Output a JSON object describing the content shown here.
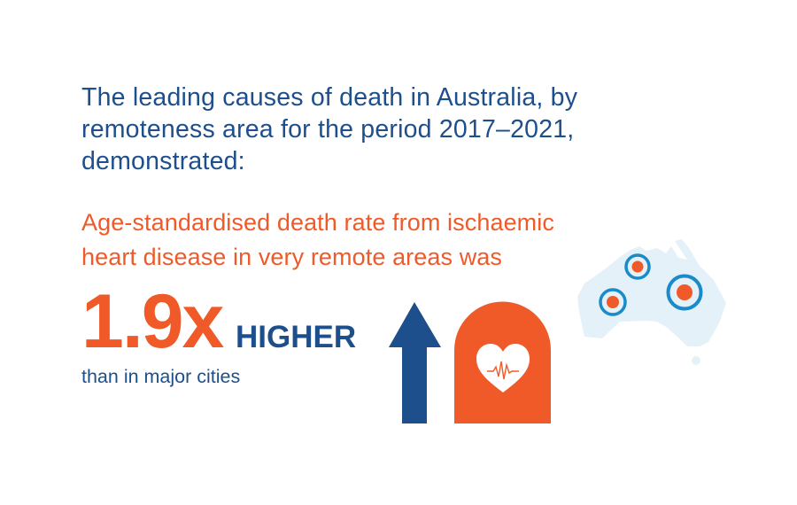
{
  "title_lines": [
    "The leading causes of death in Australia, by",
    "remoteness area for the period 2017–2021,",
    "demonstrated:"
  ],
  "subtitle_lines": [
    "Age-standardised death rate from ischaemic",
    "heart disease in very remote areas was"
  ],
  "multiplier": "1.9x",
  "direction": "HIGHER",
  "comparison": "than in major cities",
  "icons": [
    "up-arrow-icon",
    "heart-headstone-icon",
    "australia-map-icon"
  ],
  "colors": {
    "blue": "#1d4f8c",
    "orange": "#f05a28",
    "map": "#e4f1f8",
    "ring": "#1a8ac8"
  }
}
